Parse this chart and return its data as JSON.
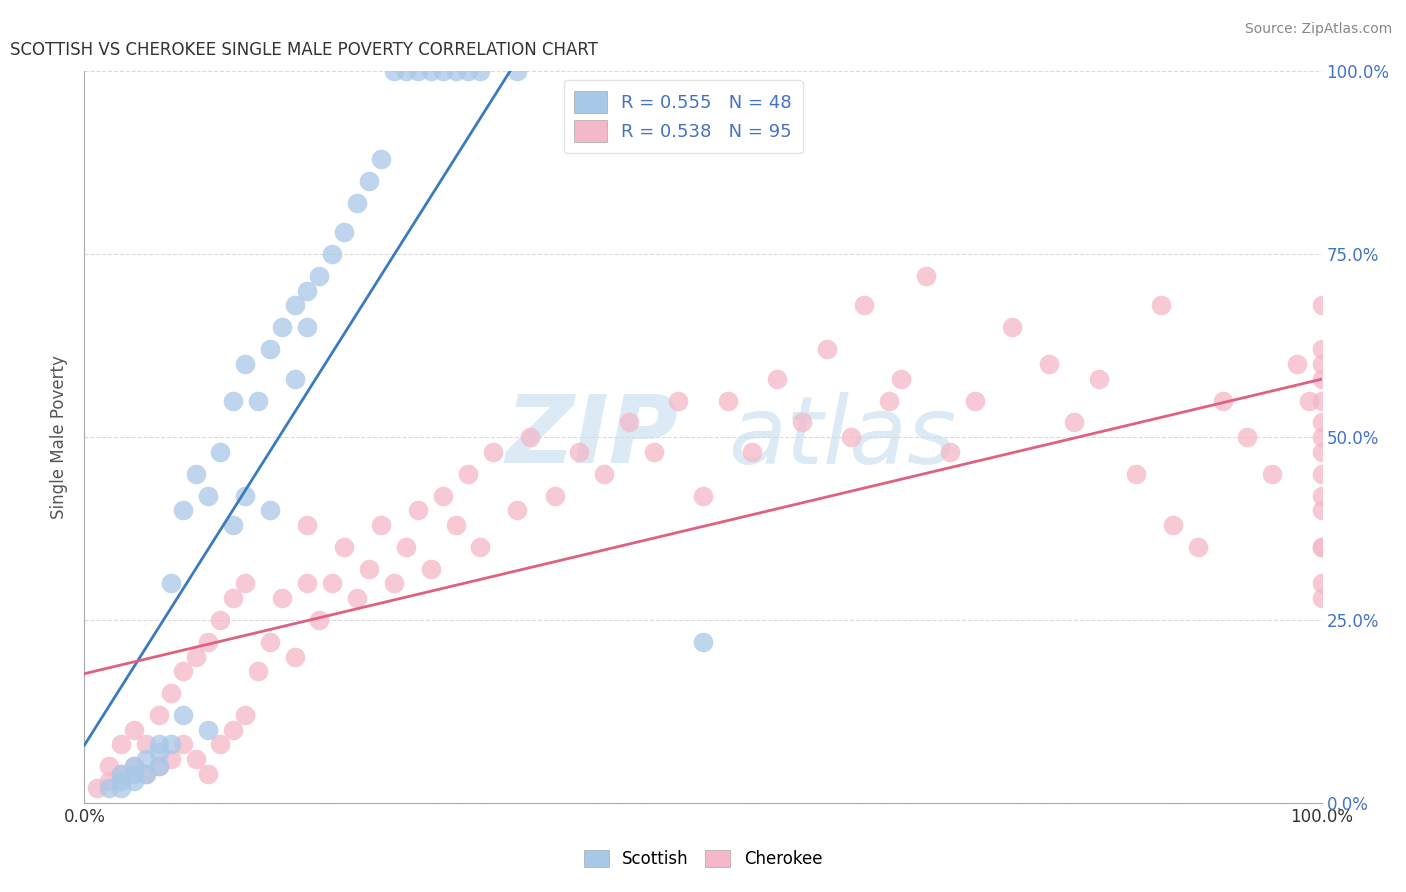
{
  "title": "SCOTTISH VS CHEROKEE SINGLE MALE POVERTY CORRELATION CHART",
  "source": "Source: ZipAtlas.com",
  "ylabel": "Single Male Poverty",
  "xlim": [
    0.0,
    1.0
  ],
  "ylim": [
    0.0,
    1.0
  ],
  "scottish_R": 0.555,
  "scottish_N": 48,
  "cherokee_R": 0.538,
  "cherokee_N": 95,
  "scottish_color": "#a8c8e8",
  "cherokee_color": "#f4b8c8",
  "scottish_line_color": "#3a7abf",
  "cherokee_line_color": "#e06080",
  "background_color": "#ffffff",
  "watermark_zip": "ZIP",
  "watermark_atlas": "atlas",
  "grid_color": "#cccccc",
  "right_axis_color": "#4472c4",
  "title_color": "#333333",
  "source_color": "#888888",
  "scottish_x": [
    0.02,
    0.03,
    0.03,
    0.03,
    0.04,
    0.04,
    0.04,
    0.05,
    0.05,
    0.06,
    0.06,
    0.06,
    0.07,
    0.07,
    0.08,
    0.08,
    0.09,
    0.1,
    0.1,
    0.11,
    0.12,
    0.12,
    0.13,
    0.13,
    0.14,
    0.15,
    0.15,
    0.16,
    0.17,
    0.17,
    0.18,
    0.18,
    0.19,
    0.2,
    0.21,
    0.22,
    0.23,
    0.24,
    0.25,
    0.26,
    0.27,
    0.28,
    0.29,
    0.3,
    0.31,
    0.32,
    0.35,
    0.5
  ],
  "scottish_y": [
    0.02,
    0.02,
    0.03,
    0.04,
    0.03,
    0.04,
    0.05,
    0.04,
    0.06,
    0.05,
    0.07,
    0.08,
    0.08,
    0.3,
    0.12,
    0.4,
    0.45,
    0.1,
    0.42,
    0.48,
    0.38,
    0.55,
    0.42,
    0.6,
    0.55,
    0.4,
    0.62,
    0.65,
    0.58,
    0.68,
    0.65,
    0.7,
    0.72,
    0.75,
    0.78,
    0.82,
    0.85,
    0.88,
    1.0,
    1.0,
    1.0,
    1.0,
    1.0,
    1.0,
    1.0,
    1.0,
    1.0,
    0.22
  ],
  "cherokee_x": [
    0.01,
    0.02,
    0.02,
    0.03,
    0.03,
    0.04,
    0.04,
    0.05,
    0.05,
    0.06,
    0.06,
    0.07,
    0.07,
    0.08,
    0.08,
    0.09,
    0.09,
    0.1,
    0.1,
    0.11,
    0.11,
    0.12,
    0.12,
    0.13,
    0.13,
    0.14,
    0.15,
    0.16,
    0.17,
    0.18,
    0.18,
    0.19,
    0.2,
    0.21,
    0.22,
    0.23,
    0.24,
    0.25,
    0.26,
    0.27,
    0.28,
    0.29,
    0.3,
    0.31,
    0.32,
    0.33,
    0.35,
    0.36,
    0.38,
    0.4,
    0.42,
    0.44,
    0.46,
    0.48,
    0.5,
    0.52,
    0.54,
    0.56,
    0.58,
    0.6,
    0.62,
    0.63,
    0.65,
    0.66,
    0.68,
    0.7,
    0.72,
    0.75,
    0.78,
    0.8,
    0.82,
    0.85,
    0.87,
    0.88,
    0.9,
    0.92,
    0.94,
    0.96,
    0.98,
    0.99,
    1.0,
    1.0,
    1.0,
    1.0,
    1.0,
    1.0,
    1.0,
    1.0,
    1.0,
    1.0,
    1.0,
    1.0,
    1.0,
    1.0,
    1.0
  ],
  "cherokee_y": [
    0.02,
    0.03,
    0.05,
    0.04,
    0.08,
    0.05,
    0.1,
    0.04,
    0.08,
    0.05,
    0.12,
    0.06,
    0.15,
    0.08,
    0.18,
    0.06,
    0.2,
    0.04,
    0.22,
    0.08,
    0.25,
    0.1,
    0.28,
    0.12,
    0.3,
    0.18,
    0.22,
    0.28,
    0.2,
    0.3,
    0.38,
    0.25,
    0.3,
    0.35,
    0.28,
    0.32,
    0.38,
    0.3,
    0.35,
    0.4,
    0.32,
    0.42,
    0.38,
    0.45,
    0.35,
    0.48,
    0.4,
    0.5,
    0.42,
    0.48,
    0.45,
    0.52,
    0.48,
    0.55,
    0.42,
    0.55,
    0.48,
    0.58,
    0.52,
    0.62,
    0.5,
    0.68,
    0.55,
    0.58,
    0.72,
    0.48,
    0.55,
    0.65,
    0.6,
    0.52,
    0.58,
    0.45,
    0.68,
    0.38,
    0.35,
    0.55,
    0.5,
    0.45,
    0.6,
    0.55,
    0.48,
    0.52,
    0.58,
    0.62,
    0.68,
    0.3,
    0.4,
    0.35,
    0.28,
    0.45,
    0.5,
    0.55,
    0.42,
    0.35,
    0.6
  ]
}
